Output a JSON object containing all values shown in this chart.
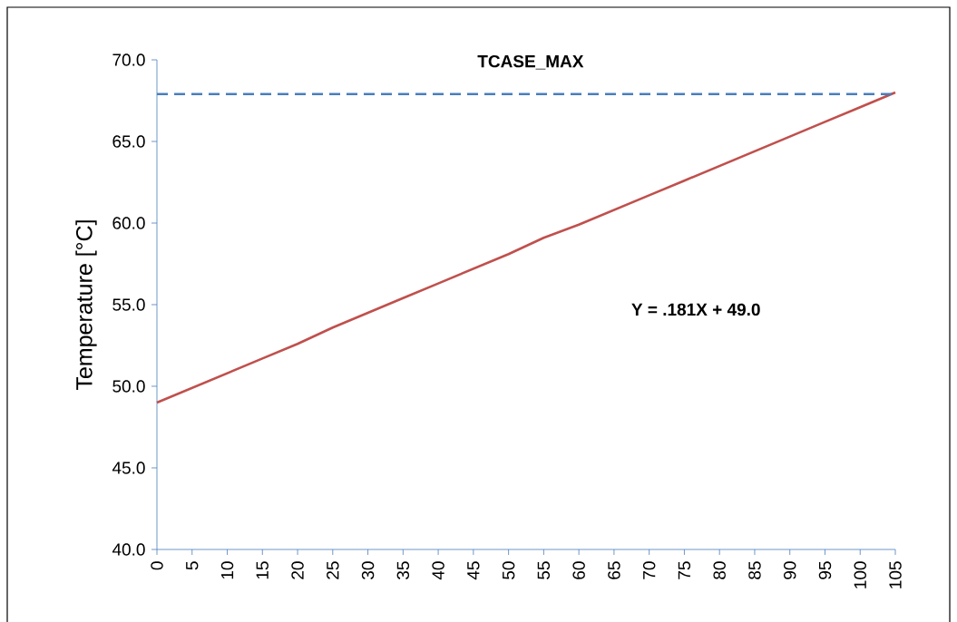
{
  "chart_data": {
    "type": "line",
    "title": "TCASE_MAX",
    "ylabel": "Temperature [°C]",
    "x": [
      0,
      5,
      10,
      15,
      20,
      25,
      30,
      35,
      40,
      45,
      50,
      55,
      60,
      65,
      70,
      75,
      80,
      85,
      90,
      95,
      100,
      105
    ],
    "series": [
      {
        "color": "#c0504d",
        "values": [
          49.0,
          49.9,
          50.8,
          51.7,
          52.6,
          53.6,
          54.5,
          55.4,
          56.3,
          57.2,
          58.1,
          59.1,
          59.9,
          60.8,
          61.7,
          62.6,
          63.5,
          64.4,
          65.3,
          66.2,
          67.1,
          68.0
        ]
      }
    ],
    "xlim": [
      0,
      105
    ],
    "xticks": [
      0,
      5,
      10,
      15,
      20,
      25,
      30,
      35,
      40,
      45,
      50,
      55,
      60,
      65,
      70,
      75,
      80,
      85,
      90,
      95,
      100,
      105
    ],
    "ylim": [
      40,
      70
    ],
    "yticks": [
      {
        "value": 40,
        "label": "40.0"
      },
      {
        "value": 45,
        "label": "45.0"
      },
      {
        "value": 50,
        "label": "50.0"
      },
      {
        "value": 55,
        "label": "55.0"
      },
      {
        "value": 60,
        "label": "60.0"
      },
      {
        "value": 65,
        "label": "65.0"
      },
      {
        "value": 70,
        "label": "70.0"
      }
    ],
    "ref_lines": [
      {
        "axis": "y",
        "value": 67.9,
        "color": "#4a7ebb",
        "line_style": "dashed"
      }
    ],
    "annotations": [
      "Y = .181X + 49.0"
    ],
    "marker": "none"
  }
}
